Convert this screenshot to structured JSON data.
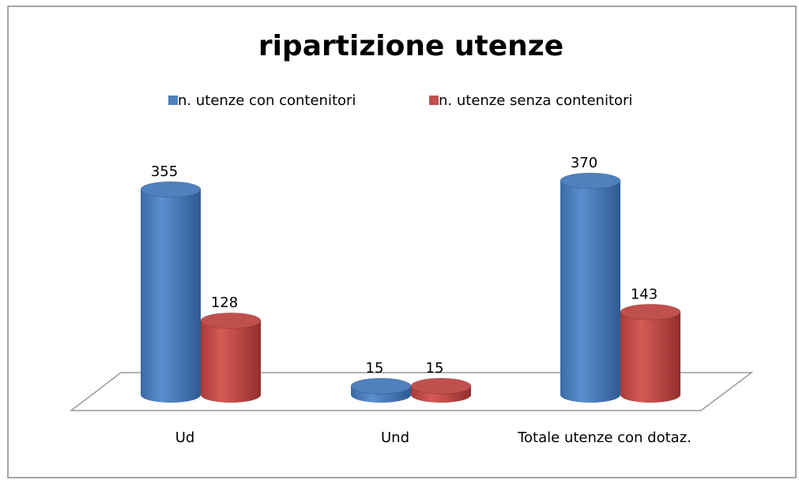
{
  "chart_data": {
    "type": "bar3d",
    "title": "ripartizione utenze",
    "categories": [
      "Ud",
      "Und",
      "Totale utenze con dotaz."
    ],
    "series": [
      {
        "name": "n. utenze con contenitori",
        "color": "#4f81bd",
        "values": [
          355,
          15,
          370
        ]
      },
      {
        "name": "n. utenze senza contenitori",
        "color": "#c0504d",
        "values": [
          128,
          15,
          143
        ]
      }
    ],
    "legend": "top"
  }
}
